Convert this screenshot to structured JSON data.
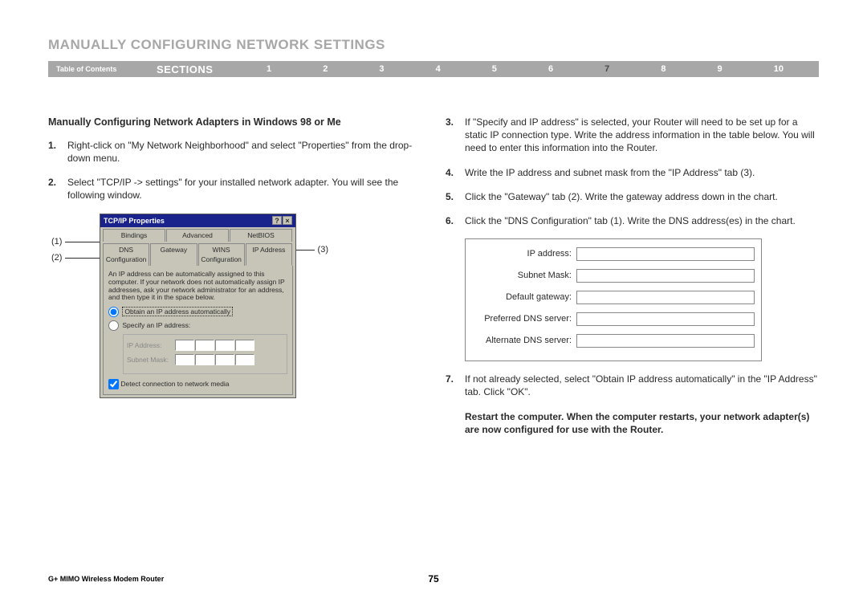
{
  "page_title": "MANUALLY CONFIGURING NETWORK SETTINGS",
  "nav": {
    "toc": "Table of Contents",
    "sections_label": "SECTIONS",
    "numbers": [
      "1",
      "2",
      "3",
      "4",
      "5",
      "6",
      "7",
      "8",
      "9",
      "10"
    ],
    "active_index": 6,
    "bar_bg": "#a7a7a7",
    "active_color": "#4a4a4a"
  },
  "subsection_title": "Manually Configuring Network Adapters in Windows 98 or Me",
  "left_steps": [
    {
      "n": "1.",
      "t": "Right-click on \"My Network Neighborhood\" and select \"Properties\" from the drop-down menu."
    },
    {
      "n": "2.",
      "t": "Select \"TCP/IP -> settings\" for your installed network adapter. You will see the following window."
    }
  ],
  "right_steps": [
    {
      "n": "3.",
      "t": "If \"Specify and IP address\" is selected, your Router will need to be set up for a static IP connection type. Write the address information in the table below. You will need to enter this information into the Router."
    },
    {
      "n": "4.",
      "t": "Write the IP address and subnet mask from the \"IP Address\" tab (3)."
    },
    {
      "n": "5.",
      "t": "Click the \"Gateway\" tab (2). Write the gateway address down in the chart."
    },
    {
      "n": "6.",
      "t": "Click the \"DNS Configuration\" tab (1). Write the DNS address(es) in the chart."
    }
  ],
  "right_step7": {
    "n": "7.",
    "t": "If not already selected, select \"Obtain IP address automatically\" in the \"IP Address\" tab. Click \"OK\"."
  },
  "restart_note": "Restart the computer. When the computer restarts, your network adapter(s) are now configured for use with the Router.",
  "callouts": {
    "c1": "(1)",
    "c2": "(2)",
    "c3": "(3)"
  },
  "win98": {
    "title": "TCP/IP Properties",
    "help_btn": "?",
    "close_btn": "×",
    "tabs_row1": [
      "Bindings",
      "Advanced",
      "NetBIOS"
    ],
    "tabs_row2": [
      "DNS Configuration",
      "Gateway",
      "WINS Configuration",
      "IP Address"
    ],
    "desc": "An IP address can be automatically assigned to this computer. If your network does not automatically assign IP addresses, ask your network administrator for an address, and then type it in the space below.",
    "radio_auto": "Obtain an IP address automatically",
    "radio_specify": "Specify an IP address:",
    "ip_label": "IP Address:",
    "mask_label": "Subnet Mask:",
    "detect": "Detect connection to network media"
  },
  "ip_table_labels": [
    "IP address:",
    "Subnet Mask:",
    "Default gateway:",
    "Preferred DNS server:",
    "Alternate DNS server:"
  ],
  "footer": {
    "product": "G+ MIMO Wireless Modem Router",
    "page": "75"
  },
  "colors": {
    "title_gray": "#a7a7a7",
    "text": "#2b2b2b",
    "win_bg": "#c7c5b8",
    "win_title": "#1a238c"
  }
}
